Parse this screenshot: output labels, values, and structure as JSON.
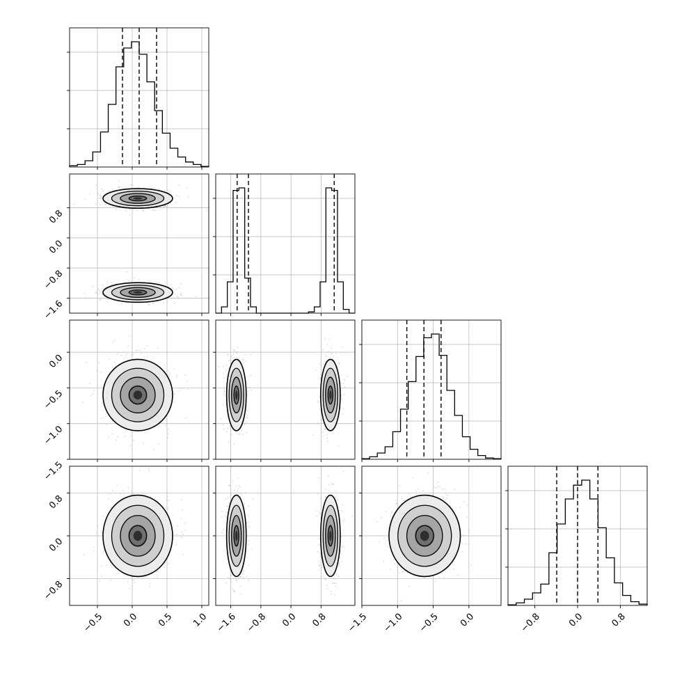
{
  "chart_data": {
    "type": "corner",
    "variables": [
      {
        "index": 0,
        "range": [
          -0.9,
          1.1
        ],
        "ticks": [
          -0.5,
          0.0,
          0.5,
          1.0
        ],
        "tick_labels": [
          "−0.5",
          "0.0",
          "0.5",
          "1.0"
        ],
        "quantiles": [
          -0.14,
          0.1,
          0.35
        ],
        "hist": [
          0.01,
          0.02,
          0.05,
          0.12,
          0.28,
          0.5,
          0.8,
          0.95,
          1.0,
          0.9,
          0.68,
          0.45,
          0.27,
          0.15,
          0.08,
          0.04,
          0.02,
          0.005
        ]
      },
      {
        "index": 1,
        "range": [
          -2.0,
          1.7
        ],
        "ticks": [
          -1.6,
          -0.8,
          0.0,
          0.8
        ],
        "tick_labels": [
          "−1.6",
          "−0.8",
          "0.0",
          "0.8"
        ],
        "quantiles": [
          -1.43,
          -1.13,
          1.15
        ],
        "hist": [
          0.0,
          0.05,
          0.25,
          0.98,
          1.0,
          0.28,
          0.05,
          0.0,
          0.0,
          0.0,
          0.0,
          0.0,
          0.0,
          0.0,
          0.0,
          0.0,
          0.01,
          0.05,
          0.25,
          1.0,
          0.98,
          0.25,
          0.03,
          0.0
        ]
      },
      {
        "index": 2,
        "range": [
          -1.5,
          0.45
        ],
        "ticks": [
          -1.5,
          -1.0,
          -0.5,
          0.0
        ],
        "tick_labels": [
          "−1.5",
          "−1.0",
          "−0.5",
          "0.0"
        ],
        "quantiles": [
          -0.87,
          -0.63,
          -0.39
        ],
        "hist": [
          0.005,
          0.02,
          0.05,
          0.1,
          0.22,
          0.4,
          0.62,
          0.82,
          0.97,
          1.0,
          0.83,
          0.55,
          0.35,
          0.18,
          0.08,
          0.03,
          0.01,
          0.005
        ]
      },
      {
        "index": 3,
        "range": [
          -1.3,
          1.3
        ],
        "ticks": [
          -0.8,
          0.0,
          0.8
        ],
        "tick_labels": [
          "−0.8",
          "0.0",
          "0.8"
        ],
        "quantiles": [
          -0.39,
          0.0,
          0.38
        ],
        "hist": [
          0.005,
          0.02,
          0.05,
          0.1,
          0.17,
          0.42,
          0.65,
          0.85,
          0.96,
          1.0,
          0.85,
          0.62,
          0.38,
          0.18,
          0.08,
          0.03,
          0.01
        ]
      }
    ],
    "pairs": [
      {
        "row": 1,
        "col": 0,
        "centers": [
          [
            0.08,
            1.05
          ],
          [
            0.08,
            -1.45
          ]
        ],
        "sd": [
          0.25,
          0.13
        ]
      },
      {
        "row": 2,
        "col": 0,
        "centers": [
          [
            0.08,
            -0.6
          ]
        ],
        "sd": [
          0.25,
          0.25
        ]
      },
      {
        "row": 2,
        "col": 1,
        "centers": [
          [
            -1.45,
            -0.6
          ],
          [
            1.05,
            -0.6
          ]
        ],
        "sd": [
          0.13,
          0.25
        ]
      },
      {
        "row": 3,
        "col": 0,
        "centers": [
          [
            0.08,
            0.0
          ]
        ],
        "sd": [
          0.25,
          0.38
        ]
      },
      {
        "row": 3,
        "col": 1,
        "centers": [
          [
            -1.45,
            0.0
          ],
          [
            1.05,
            0.0
          ]
        ],
        "sd": [
          0.13,
          0.38
        ]
      },
      {
        "row": 3,
        "col": 2,
        "centers": [
          [
            -0.62,
            0.0
          ]
        ],
        "sd": [
          0.25,
          0.38
        ]
      }
    ],
    "grid": true,
    "histtype": "step",
    "quantile_linestyle": "dashed",
    "colors": {
      "line": "#000000",
      "grid": "#b0b0b0",
      "points": "#aaaaaa"
    }
  }
}
